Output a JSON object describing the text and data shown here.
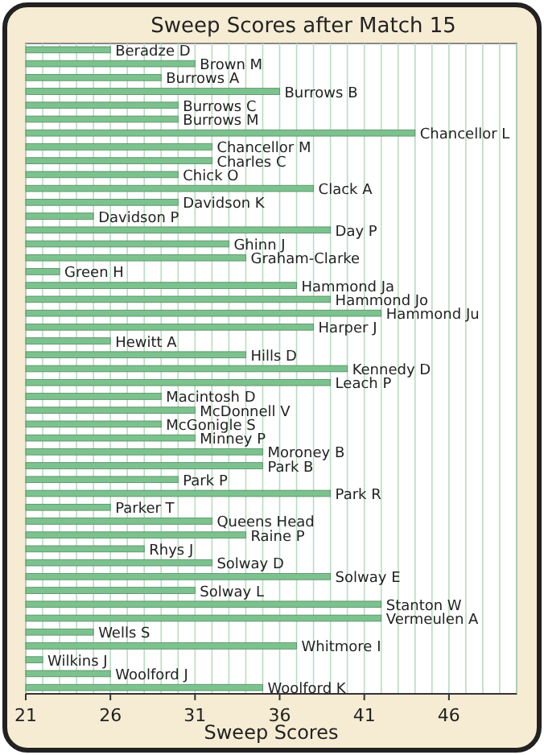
{
  "chart_data": {
    "type": "bar",
    "orientation": "horizontal",
    "title": "Sweep Scores after Match 15",
    "xlabel": "Sweep Scores",
    "categories": [
      "Beradze D",
      "Brown M",
      "Burrows A",
      "Burrows B",
      "Burrows C",
      "Burrows M",
      "Chancellor L",
      "Chancellor M",
      "Charles C",
      "Chick O",
      "Clack A",
      "Davidson K",
      "Davidson P",
      "Day P",
      "Ghinn J",
      "Graham-Clarke",
      "Green H",
      "Hammond Ja",
      "Hammond Jo",
      "Hammond Ju",
      "Harper J",
      "Hewitt A",
      "Hills D",
      "Kennedy D",
      "Leach P",
      "Macintosh D",
      "McDonnell V",
      "McGonigle S",
      "Minney P",
      "Moroney B",
      "Park B",
      "Park P",
      "Park R",
      "Parker T",
      "Queens Head",
      "Raine P",
      "Rhys J",
      "Solway D",
      "Solway E",
      "Solway L",
      "Stanton W",
      "Vermeulen A",
      "Wells S",
      "Whitmore I",
      "Wilkins J",
      "Woolford J",
      "Woolford K"
    ],
    "values": [
      26,
      31,
      29,
      36,
      30,
      30,
      44,
      32,
      32,
      30,
      38,
      30,
      25,
      39,
      33,
      34,
      23,
      37,
      39,
      42,
      38,
      26,
      34,
      40,
      39,
      29,
      31,
      29,
      31,
      35,
      35,
      30,
      39,
      26,
      32,
      34,
      28,
      32,
      39,
      31,
      42,
      42,
      25,
      37,
      22,
      26,
      35
    ],
    "color": "#7cc28e",
    "xlim": [
      21,
      50
    ],
    "xticks": [
      21,
      {
        "value": 22,
        "label": null
      },
      {
        "value": 23,
        "label": null
      },
      {
        "value": 24,
        "label": null
      },
      {
        "value": 25,
        "label": null
      },
      26,
      {
        "value": 27,
        "label": null
      },
      {
        "value": 28,
        "label": null
      },
      {
        "value": 29,
        "label": null
      },
      {
        "value": 30,
        "label": null
      },
      31,
      {
        "value": 32,
        "label": null
      },
      {
        "value": 33,
        "label": null
      },
      {
        "value": 34,
        "label": null
      },
      {
        "value": 35,
        "label": null
      },
      36,
      {
        "value": 37,
        "label": null
      },
      {
        "value": 38,
        "label": null
      },
      {
        "value": 39,
        "label": null
      },
      {
        "value": 40,
        "label": null
      },
      41,
      {
        "value": 42,
        "label": null
      },
      {
        "value": 43,
        "label": null
      },
      {
        "value": 44,
        "label": null
      },
      {
        "value": 45,
        "label": null
      },
      46,
      {
        "value": 47,
        "label": null
      },
      {
        "value": 48,
        "label": null
      },
      {
        "value": 49,
        "label": null
      },
      {
        "value": 50,
        "label": null
      }
    ],
    "grid": "x"
  }
}
